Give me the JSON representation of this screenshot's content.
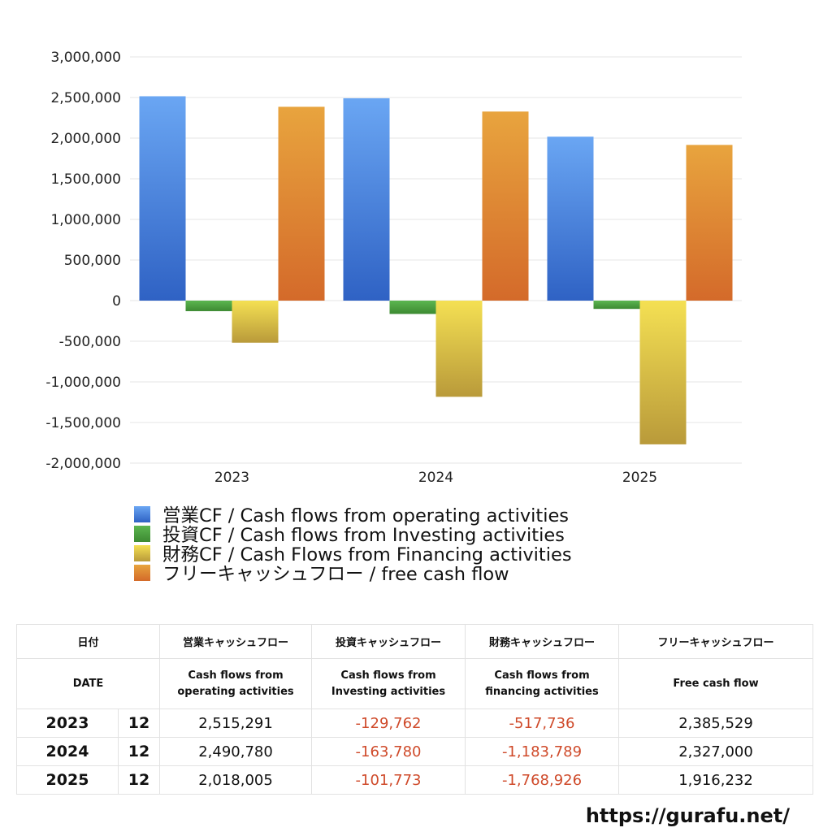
{
  "chart_data": {
    "type": "bar",
    "categories": [
      "2023",
      "2024",
      "2025"
    ],
    "series": [
      {
        "name": "営業CF / Cash flows from operating activities",
        "values": [
          2515291,
          2490780,
          2018005
        ],
        "color_top": "#6aa6f3",
        "color_bottom": "#2f62c4"
      },
      {
        "name": "投資CF / Cash flows from Investing activities",
        "values": [
          -129762,
          -163780,
          -101773
        ],
        "color_top": "#5cb650",
        "color_bottom": "#3d8a32"
      },
      {
        "name": "財務CF / Cash Flows from Financing activities",
        "values": [
          -517736,
          -1183789,
          -1768926
        ],
        "color_top": "#f4e053",
        "color_bottom": "#b99a3a"
      },
      {
        "name": "フリーキャッシュフロー / free cash flow",
        "values": [
          2385529,
          2327000,
          1916232
        ],
        "color_top": "#e8a43e",
        "color_bottom": "#d46a2a"
      }
    ],
    "ylim": [
      -2000000,
      3000000
    ],
    "yticks": [
      "3,000,000",
      "2,500,000",
      "2,000,000",
      "1,500,000",
      "1,000,000",
      "500,000",
      "0",
      "-500,000",
      "-1,000,000",
      "-1,500,000",
      "-2,000,000"
    ],
    "ytick_values": [
      3000000,
      2500000,
      2000000,
      1500000,
      1000000,
      500000,
      0,
      -500000,
      -1000000,
      -1500000,
      -2000000
    ],
    "grid": true,
    "legend_position": "bottom"
  },
  "table": {
    "header_jp": [
      "日付",
      "営業キャッシュフロー",
      "投資キャッシュフロー",
      "財務キャッシュフロー",
      "フリーキャッシュフロー"
    ],
    "header_en_date": "DATE",
    "header_en": [
      [
        "Cash flows from",
        "operating activities"
      ],
      [
        "Cash flows from",
        "Investing activities"
      ],
      [
        "Cash flows from",
        "financing activities"
      ],
      [
        "Free cash flow",
        ""
      ]
    ],
    "rows": [
      {
        "year": "2023",
        "month": "12",
        "operating": "2,515,291",
        "investing": "-129,762",
        "financing": "-517,736",
        "free": "2,385,529"
      },
      {
        "year": "2024",
        "month": "12",
        "operating": "2,490,780",
        "investing": "-163,780",
        "financing": "-1,183,789",
        "free": "2,327,000"
      },
      {
        "year": "2025",
        "month": "12",
        "operating": "2,018,005",
        "investing": "-101,773",
        "financing": "-1,768,926",
        "free": "1,916,232"
      }
    ]
  },
  "footer_url": "https://gurafu.net/"
}
